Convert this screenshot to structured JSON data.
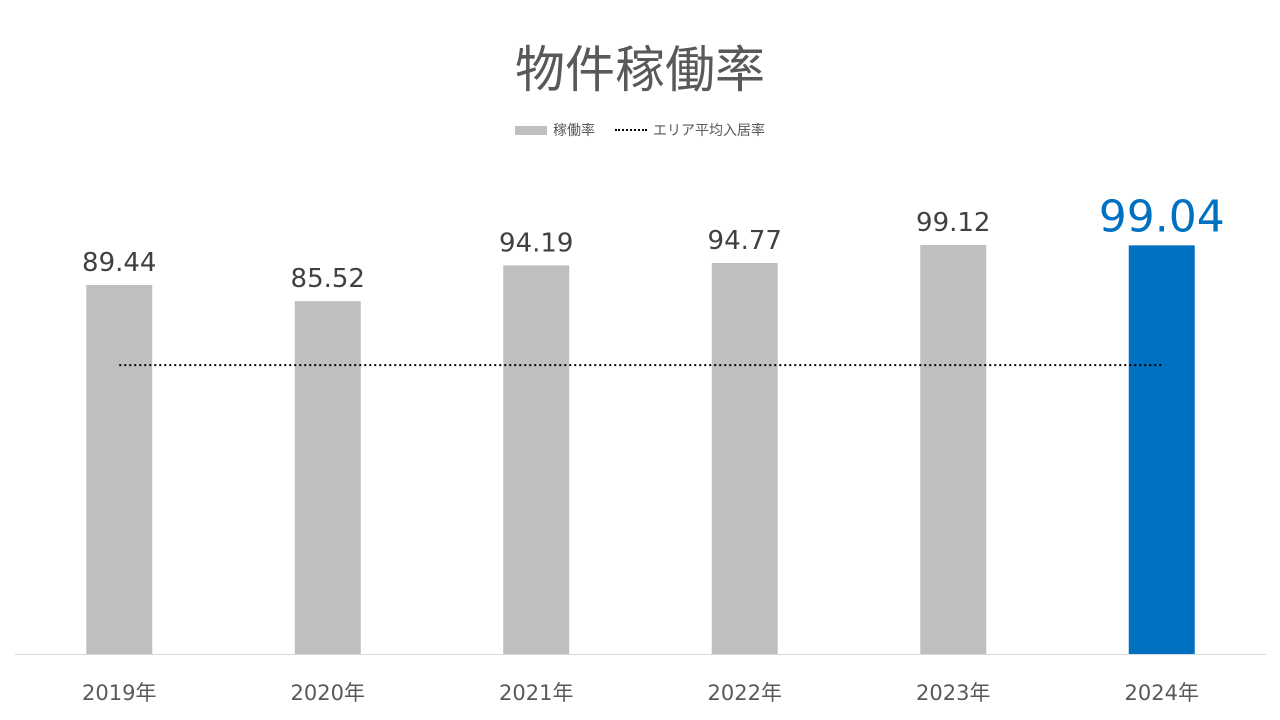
{
  "chart_data": {
    "type": "bar",
    "title": "物件稼働率",
    "categories": [
      "2019年",
      "2020年",
      "2021年",
      "2022年",
      "2023年",
      "2024年"
    ],
    "series": [
      {
        "name": "稼働率",
        "values": [
          89.44,
          85.52,
          94.19,
          94.77,
          99.12,
          99.04
        ],
        "color": "#bfbfbf",
        "highlight_color": "#0070c0",
        "highlight_index": 5
      },
      {
        "name": "エリア平均入居率",
        "type": "line",
        "style": "dotted",
        "value": 70,
        "color": "#000000"
      }
    ],
    "data_labels": [
      "89.44",
      "85.52",
      "94.19",
      "94.77",
      "99.12",
      "99.04"
    ],
    "ylim": [
      0,
      100
    ],
    "grid": false,
    "legend": "top-center"
  }
}
